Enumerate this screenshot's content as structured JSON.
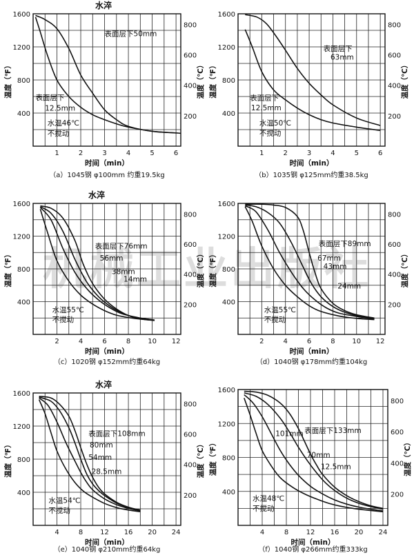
{
  "watermark": "机械工业出版社",
  "chart_data": [
    {
      "type": "line",
      "title": "水淬",
      "caption": "（a）1045钢 φ100mm 约重19.5kg",
      "xlabel": "时间（min）",
      "ylabel_left": "温度（℉）",
      "ylabel_right": "温度（℃）",
      "xlim": [
        0,
        6.2
      ],
      "xticks": [
        1,
        2,
        3,
        4,
        5,
        6
      ],
      "ylim": [
        0,
        1600
      ],
      "yticks": [
        400,
        800,
        1200,
        1600
      ],
      "ylim_right": [
        0,
        870
      ],
      "yticks_right": [
        200,
        400,
        600,
        800
      ],
      "annotations": [
        "表面层下50mm",
        "表面层下",
        "12.5mm",
        "水温46℃",
        "不搅动"
      ],
      "series": [
        {
          "name": "表面层下50mm",
          "x": [
            0.1,
            0.5,
            1.0,
            1.5,
            2.0,
            2.5,
            3.0,
            3.5,
            4.0,
            5.0,
            6.0,
            6.2
          ],
          "y": [
            1580,
            1530,
            1420,
            1180,
            860,
            640,
            440,
            320,
            240,
            180,
            160,
            155
          ]
        },
        {
          "name": "12.5mm",
          "x": [
            0.1,
            0.3,
            0.6,
            1.0,
            1.5,
            2.0,
            2.5,
            3.0,
            3.5,
            4.0,
            5.0,
            6.0
          ],
          "y": [
            1560,
            1380,
            1100,
            800,
            600,
            470,
            380,
            320,
            270,
            230,
            180,
            160
          ]
        }
      ]
    },
    {
      "type": "line",
      "title": "",
      "caption": "（b）1035钢 φ125mm约重38.5kg",
      "xlabel": "时间（min）",
      "ylabel_left": "温度（℉）",
      "ylabel_right": "温度（℃）",
      "xlim": [
        0,
        6.2
      ],
      "xticks": [
        1,
        2,
        3,
        4,
        5,
        6
      ],
      "ylim": [
        0,
        1600
      ],
      "yticks": [
        400,
        800,
        1200,
        1600
      ],
      "ylim_right": [
        0,
        870
      ],
      "yticks_right": [
        200,
        400,
        600,
        800
      ],
      "annotations": [
        "表面层下",
        "63mm",
        "表面层下",
        "12.5mm",
        "水温50℃",
        "不搅动"
      ],
      "series": [
        {
          "name": "63mm",
          "x": [
            0.3,
            0.8,
            1.2,
            1.6,
            2.0,
            2.5,
            3.0,
            3.5,
            4.0,
            5.0,
            6.0
          ],
          "y": [
            1590,
            1560,
            1480,
            1330,
            1160,
            940,
            760,
            620,
            500,
            340,
            250
          ]
        },
        {
          "name": "12.5mm",
          "x": [
            0.3,
            0.6,
            1.0,
            1.5,
            2.0,
            2.5,
            3.0,
            3.5,
            4.0,
            5.0,
            6.0
          ],
          "y": [
            1410,
            1200,
            900,
            680,
            560,
            460,
            380,
            320,
            280,
            230,
            190
          ]
        }
      ]
    },
    {
      "type": "line",
      "title": "水淬",
      "caption": "（c）1020钢 φ152mm约重64kg",
      "xlabel": "时间（min）",
      "ylabel_left": "温度（℉）",
      "ylabel_right": "温度（℃）",
      "xlim": [
        0,
        12.4
      ],
      "xticks": [
        2,
        4,
        6,
        8,
        10,
        12
      ],
      "ylim": [
        0,
        1600
      ],
      "yticks": [
        400,
        800,
        1200,
        1600
      ],
      "ylim_right": [
        0,
        870
      ],
      "yticks_right": [
        200,
        400,
        600,
        800
      ],
      "annotations": [
        "表面层下76mm",
        "56mm",
        "38mm",
        "14mm",
        "水温55℃",
        "不搅动"
      ],
      "series": [
        {
          "name": "76mm",
          "x": [
            0.6,
            1.5,
            2.5,
            3.5,
            4.2,
            5.0,
            6.0,
            7.0,
            8.0,
            9.0,
            10.2
          ],
          "y": [
            1570,
            1540,
            1420,
            1150,
            860,
            620,
            430,
            310,
            230,
            190,
            170
          ]
        },
        {
          "name": "56mm",
          "x": [
            0.6,
            1.5,
            2.5,
            3.5,
            4.5,
            5.5,
            6.5,
            7.5,
            8.5,
            10.2
          ],
          "y": [
            1560,
            1480,
            1260,
            920,
            640,
            460,
            340,
            260,
            210,
            175
          ]
        },
        {
          "name": "38mm",
          "x": [
            0.6,
            1.5,
            2.5,
            3.5,
            4.5,
            5.5,
            6.5,
            7.5,
            9.0,
            10.2
          ],
          "y": [
            1550,
            1400,
            1050,
            760,
            560,
            420,
            320,
            250,
            200,
            175
          ]
        },
        {
          "name": "14mm",
          "x": [
            0.6,
            1.2,
            2.0,
            3.0,
            4.0,
            5.0,
            6.0,
            7.0,
            8.5,
            10.2
          ],
          "y": [
            1530,
            1250,
            900,
            650,
            480,
            370,
            290,
            235,
            195,
            170
          ]
        }
      ]
    },
    {
      "type": "line",
      "title": "",
      "caption": "（d）1040钢 φ178mm约重104kg",
      "xlabel": "时间（min）",
      "ylabel_left": "温度（℉）",
      "ylabel_right": "温度（℃）",
      "xlim": [
        0,
        12.4
      ],
      "xticks": [
        2,
        4,
        6,
        8,
        10,
        12
      ],
      "ylim": [
        0,
        1600
      ],
      "yticks": [
        400,
        800,
        1200,
        1600
      ],
      "ylim_right": [
        0,
        870
      ],
      "yticks_right": [
        200,
        400,
        600,
        800
      ],
      "annotations": [
        "表面层下89mm",
        "67mm",
        "43mm",
        "24mm",
        "水温55℃",
        "不搅动"
      ],
      "series": [
        {
          "name": "89mm",
          "x": [
            0.6,
            2.0,
            3.0,
            4.0,
            5.0,
            5.5,
            6.0,
            6.5,
            7.0,
            8.0,
            9.0,
            10.0,
            11.5
          ],
          "y": [
            1590,
            1590,
            1580,
            1550,
            1440,
            1270,
            1000,
            750,
            560,
            380,
            290,
            240,
            200
          ]
        },
        {
          "name": "67mm",
          "x": [
            0.6,
            1.5,
            2.5,
            3.5,
            4.5,
            5.5,
            6.2,
            7.0,
            8.0,
            9.0,
            10.0,
            11.5
          ],
          "y": [
            1580,
            1560,
            1490,
            1360,
            1120,
            820,
            620,
            460,
            340,
            270,
            230,
            190
          ]
        },
        {
          "name": "43mm",
          "x": [
            0.6,
            1.5,
            2.5,
            3.5,
            4.5,
            5.5,
            6.5,
            7.5,
            8.5,
            10.0,
            11.5
          ],
          "y": [
            1570,
            1500,
            1280,
            1000,
            760,
            560,
            420,
            320,
            260,
            220,
            185
          ]
        },
        {
          "name": "24mm",
          "x": [
            0.6,
            1.2,
            2.0,
            3.0,
            4.0,
            5.0,
            6.0,
            7.0,
            8.5,
            10.0,
            11.5
          ],
          "y": [
            1560,
            1380,
            1080,
            800,
            600,
            460,
            350,
            280,
            225,
            195,
            180
          ]
        }
      ]
    },
    {
      "type": "line",
      "title": "水淬",
      "caption": "（e）1040钢 φ210mm约重64kg",
      "xlabel": "时间（min）",
      "ylabel_left": "温度（℉）",
      "ylabel_right": "温度（℃）",
      "xlim": [
        0,
        24.8
      ],
      "xticks": [
        4,
        8,
        12,
        16,
        20,
        24
      ],
      "ylim": [
        0,
        1600
      ],
      "yticks": [
        400,
        800,
        1200,
        1600
      ],
      "ylim_right": [
        0,
        870
      ],
      "yticks_right": [
        200,
        400,
        600,
        800
      ],
      "annotations": [
        "表面层下108mm",
        "80mm",
        "54mm",
        "28.5mm",
        "水温54℃",
        "不搅动"
      ],
      "series": [
        {
          "name": "108mm",
          "x": [
            1.0,
            3.0,
            4.5,
            6.0,
            7.0,
            8.0,
            9.0,
            10.0,
            11.0,
            12.0,
            14.0,
            16.0,
            18.0
          ],
          "y": [
            1560,
            1540,
            1460,
            1320,
            1150,
            940,
            740,
            580,
            460,
            380,
            280,
            220,
            185
          ]
        },
        {
          "name": "80mm",
          "x": [
            1.0,
            3.0,
            4.5,
            6.0,
            7.0,
            8.0,
            9.0,
            10.0,
            11.0,
            12.0,
            14.0,
            16.0,
            18.0
          ],
          "y": [
            1550,
            1500,
            1380,
            1180,
            1000,
            800,
            620,
            500,
            420,
            360,
            270,
            215,
            180
          ]
        },
        {
          "name": "54mm",
          "x": [
            1.0,
            2.5,
            4.0,
            5.5,
            7.0,
            8.0,
            9.0,
            10.0,
            12.0,
            14.0,
            16.0,
            18.0
          ],
          "y": [
            1540,
            1450,
            1250,
            1000,
            780,
            640,
            520,
            430,
            320,
            250,
            205,
            175
          ]
        },
        {
          "name": "28.5mm",
          "x": [
            1.0,
            2.0,
            3.0,
            4.0,
            5.5,
            7.0,
            8.5,
            10.0,
            12.0,
            14.0,
            16.0,
            18.0
          ],
          "y": [
            1520,
            1350,
            1120,
            900,
            680,
            520,
            410,
            340,
            265,
            215,
            185,
            165
          ]
        }
      ]
    },
    {
      "type": "line",
      "title": "",
      "caption": "（f）1040钢 φ266mm约重333kg",
      "xlabel": "时间（min）",
      "ylabel_left": "温度（℉）",
      "ylabel_right": "温度（℃）",
      "xlim": [
        0,
        24.8
      ],
      "xticks": [
        4,
        8,
        12,
        16,
        20,
        24
      ],
      "ylim": [
        0,
        1600
      ],
      "yticks": [
        400,
        800,
        1200,
        1600
      ],
      "ylim_right": [
        0,
        870
      ],
      "yticks_right": [
        200,
        400,
        600,
        800
      ],
      "annotations": [
        "表面层下133mm",
        "101mm",
        "70mm",
        "12.5mm",
        "水温48℃",
        "不搅动"
      ],
      "series": [
        {
          "name": "133mm",
          "x": [
            1.0,
            3.0,
            5.0,
            7.0,
            8.5,
            10.0,
            11.0,
            12.0,
            13.0,
            14.0,
            16.0,
            18.0,
            20.0,
            22.0,
            24.0
          ],
          "y": [
            1580,
            1570,
            1530,
            1440,
            1320,
            1140,
            990,
            840,
            710,
            600,
            450,
            350,
            280,
            230,
            200
          ]
        },
        {
          "name": "101mm",
          "x": [
            1.0,
            3.0,
            5.0,
            7.0,
            8.5,
            10.0,
            11.5,
            13.0,
            14.5,
            16.0,
            18.0,
            20.0,
            22.0,
            24.0
          ],
          "y": [
            1560,
            1520,
            1420,
            1260,
            1100,
            920,
            760,
            620,
            500,
            410,
            320,
            260,
            220,
            190
          ]
        },
        {
          "name": "70mm",
          "x": [
            1.0,
            2.5,
            4.0,
            5.5,
            7.0,
            8.5,
            10.0,
            12.0,
            14.0,
            16.0,
            18.0,
            20.0,
            22.0,
            24.0
          ],
          "y": [
            1540,
            1440,
            1280,
            1080,
            880,
            720,
            590,
            460,
            370,
            300,
            250,
            215,
            190,
            170
          ]
        },
        {
          "name": "12.5mm",
          "x": [
            1.0,
            2.0,
            3.0,
            4.0,
            5.5,
            7.0,
            9.0,
            11.0,
            13.0,
            15.0,
            17.0,
            20.0,
            24.0
          ],
          "y": [
            1500,
            1300,
            1080,
            880,
            700,
            560,
            450,
            370,
            310,
            260,
            225,
            190,
            160
          ]
        }
      ]
    }
  ]
}
